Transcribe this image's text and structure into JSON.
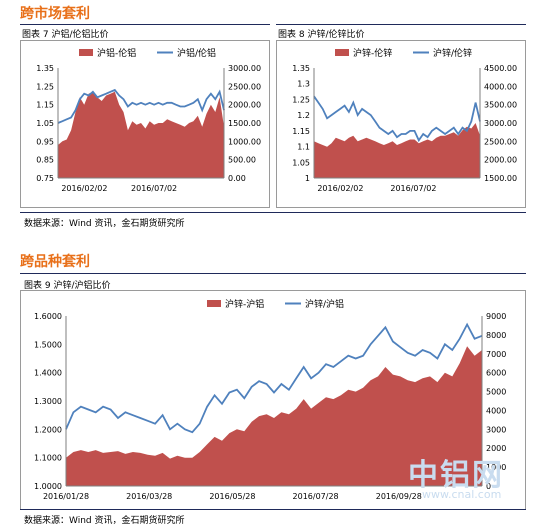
{
  "section1_title": "跨市场套利",
  "section2_title": "跨品种套利",
  "source_text": "数据来源：Wind 资讯，金石期货研究所",
  "watermark": {
    "big": "中铝网",
    "small": "www.cnal.com"
  },
  "colors": {
    "area": "#c0504d",
    "line": "#4f81bd",
    "accent": "#e8701a",
    "rule": "#1f2a5a"
  },
  "chart_data": [
    {
      "id": "c7",
      "caption": "图表 7 沪铝/伦铝比价",
      "type": "area+line",
      "series": [
        {
          "name": "沪铝-伦铝",
          "kind": "area",
          "axis": "right",
          "values": [
            900,
            1000,
            1050,
            1300,
            1800,
            2200,
            2000,
            2300,
            2350,
            2200,
            2100,
            2250,
            2300,
            2350,
            2000,
            1800,
            1300,
            1550,
            1450,
            1500,
            1350,
            1550,
            1450,
            1500,
            1500,
            1600,
            1550,
            1500,
            1450,
            1400,
            1500,
            1550,
            1700,
            1400,
            1750,
            2000,
            1800,
            2200,
            1400
          ]
        },
        {
          "name": "沪铝/伦铝",
          "kind": "line",
          "axis": "left",
          "values": [
            1.05,
            1.06,
            1.07,
            1.08,
            1.12,
            1.18,
            1.21,
            1.2,
            1.22,
            1.19,
            1.2,
            1.21,
            1.22,
            1.23,
            1.2,
            1.18,
            1.14,
            1.16,
            1.15,
            1.16,
            1.15,
            1.16,
            1.15,
            1.16,
            1.15,
            1.16,
            1.16,
            1.15,
            1.14,
            1.14,
            1.15,
            1.16,
            1.18,
            1.12,
            1.18,
            1.21,
            1.18,
            1.22,
            1.12
          ]
        }
      ],
      "x_ticks": [
        "2016/02/02",
        "2016/07/02"
      ],
      "x_tick_pos": [
        0.02,
        0.44
      ],
      "y_left": {
        "min": 0.75,
        "max": 1.35,
        "ticks": [
          "1.35",
          "1.25",
          "1.15",
          "1.05",
          "0.95",
          "0.85",
          "0.75"
        ]
      },
      "y_right": {
        "min": 0,
        "max": 3000,
        "ticks": [
          "3000.00",
          "2500.00",
          "2000.00",
          "1500.00",
          "1000.00",
          "500.00",
          "0.00"
        ]
      }
    },
    {
      "id": "c8",
      "caption": "图表 8 沪锌/伦锌比价",
      "type": "area+line",
      "series": [
        {
          "name": "沪锌-伦锌",
          "kind": "area",
          "axis": "right",
          "values": [
            2500,
            2450,
            2400,
            2350,
            2450,
            2600,
            2550,
            2500,
            2600,
            2650,
            2500,
            2550,
            2600,
            2550,
            2500,
            2450,
            2400,
            2450,
            2500,
            2400,
            2450,
            2500,
            2550,
            2550,
            2450,
            2500,
            2550,
            2500,
            2600,
            2650,
            2650,
            2700,
            2750,
            2650,
            2800,
            2900,
            2850,
            3000,
            2650
          ]
        },
        {
          "name": "沪锌/伦锌",
          "kind": "line",
          "axis": "left",
          "values": [
            1.26,
            1.24,
            1.22,
            1.19,
            1.2,
            1.21,
            1.22,
            1.23,
            1.21,
            1.24,
            1.2,
            1.22,
            1.21,
            1.2,
            1.18,
            1.16,
            1.15,
            1.14,
            1.15,
            1.13,
            1.14,
            1.14,
            1.15,
            1.15,
            1.12,
            1.14,
            1.13,
            1.15,
            1.16,
            1.15,
            1.14,
            1.15,
            1.16,
            1.14,
            1.16,
            1.15,
            1.18,
            1.24,
            1.18
          ]
        }
      ],
      "x_ticks": [
        "2016/02/02",
        "2016/07/02"
      ],
      "x_tick_pos": [
        0.02,
        0.46
      ],
      "y_left": {
        "min": 1.0,
        "max": 1.35,
        "ticks": [
          "1.35",
          "1.3",
          "1.25",
          "1.2",
          "1.15",
          "1.1",
          "1.05",
          "1"
        ]
      },
      "y_right": {
        "min": 1500,
        "max": 4500,
        "ticks": [
          "4500.00",
          "4000.00",
          "3500.00",
          "3000.00",
          "2500.00",
          "2000.00",
          "1500.00"
        ]
      }
    },
    {
      "id": "c9",
      "caption": "图表 9 沪锌/沪铝比价",
      "type": "area+line",
      "series": [
        {
          "name": "沪锌-沪铝",
          "kind": "area",
          "axis": "right",
          "values": [
            1500,
            1800,
            1900,
            1800,
            1900,
            1750,
            1800,
            1850,
            1700,
            1800,
            1750,
            1650,
            1600,
            1750,
            1450,
            1600,
            1500,
            1500,
            1800,
            2200,
            2600,
            2400,
            2800,
            3000,
            2900,
            3400,
            3700,
            3800,
            3600,
            3900,
            3800,
            4100,
            4600,
            4100,
            4400,
            4700,
            4600,
            4800,
            5100,
            5000,
            5200,
            5600,
            5800,
            6300,
            5900,
            5800,
            5600,
            5500,
            5700,
            5800,
            5500,
            6000,
            5800,
            6500,
            7400,
            6900,
            7200
          ]
        },
        {
          "name": "沪锌/沪铝",
          "kind": "line",
          "axis": "left",
          "values": [
            1.2,
            1.26,
            1.28,
            1.27,
            1.26,
            1.28,
            1.27,
            1.24,
            1.26,
            1.25,
            1.24,
            1.23,
            1.22,
            1.25,
            1.2,
            1.22,
            1.2,
            1.19,
            1.22,
            1.28,
            1.32,
            1.29,
            1.33,
            1.34,
            1.31,
            1.35,
            1.37,
            1.36,
            1.33,
            1.36,
            1.34,
            1.38,
            1.42,
            1.38,
            1.4,
            1.43,
            1.42,
            1.44,
            1.46,
            1.45,
            1.46,
            1.5,
            1.53,
            1.56,
            1.51,
            1.49,
            1.47,
            1.46,
            1.48,
            1.47,
            1.45,
            1.5,
            1.48,
            1.52,
            1.57,
            1.52,
            1.53
          ]
        }
      ],
      "x_ticks": [
        "2016/01/28",
        "2016/03/28",
        "2016/05/28",
        "2016/07/28",
        "2016/09/28"
      ],
      "x_tick_pos": [
        0.0,
        0.2,
        0.4,
        0.6,
        0.8
      ],
      "y_left": {
        "min": 1.0,
        "max": 1.6,
        "ticks": [
          "1.6000",
          "1.5000",
          "1.4000",
          "1.3000",
          "1.2000",
          "1.1000",
          "1.0000"
        ]
      },
      "y_right": {
        "min": 0,
        "max": 9000,
        "ticks": [
          "9000",
          "8000",
          "7000",
          "6000",
          "5000",
          "4000",
          "3000",
          "2000",
          "1000",
          "0"
        ]
      }
    }
  ]
}
